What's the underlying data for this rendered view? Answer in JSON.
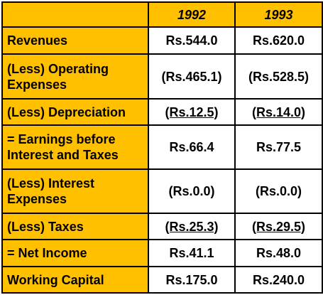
{
  "table": {
    "header": [
      "1992",
      "1993"
    ],
    "rows": [
      {
        "label": "Revenues",
        "values": [
          "Rs.544.0",
          "Rs.620.0"
        ]
      },
      {
        "label": "(Less) Operating Expenses",
        "values": [
          "(Rs.465.1)",
          "(Rs.528.5)"
        ]
      },
      {
        "label": "(Less) Depreciation",
        "values": [
          "(Rs.12.5)",
          "(Rs.14.0)"
        ],
        "underline": true
      },
      {
        "label": "= Earnings before Interest and Taxes",
        "values": [
          "Rs.66.4",
          "Rs.77.5"
        ]
      },
      {
        "label": "(Less) Interest Expenses",
        "values": [
          "(Rs.0.0)",
          "(Rs.0.0)"
        ]
      },
      {
        "label": "(Less) Taxes",
        "values": [
          "(Rs.25.3)",
          "(Rs.29.5)"
        ],
        "underline": true
      },
      {
        "label": "= Net Income",
        "values": [
          "Rs.41.1",
          "Rs.48.0"
        ]
      },
      {
        "label": "Working Capital",
        "values": [
          "Rs.175.0",
          "Rs.240.0"
        ]
      }
    ]
  }
}
